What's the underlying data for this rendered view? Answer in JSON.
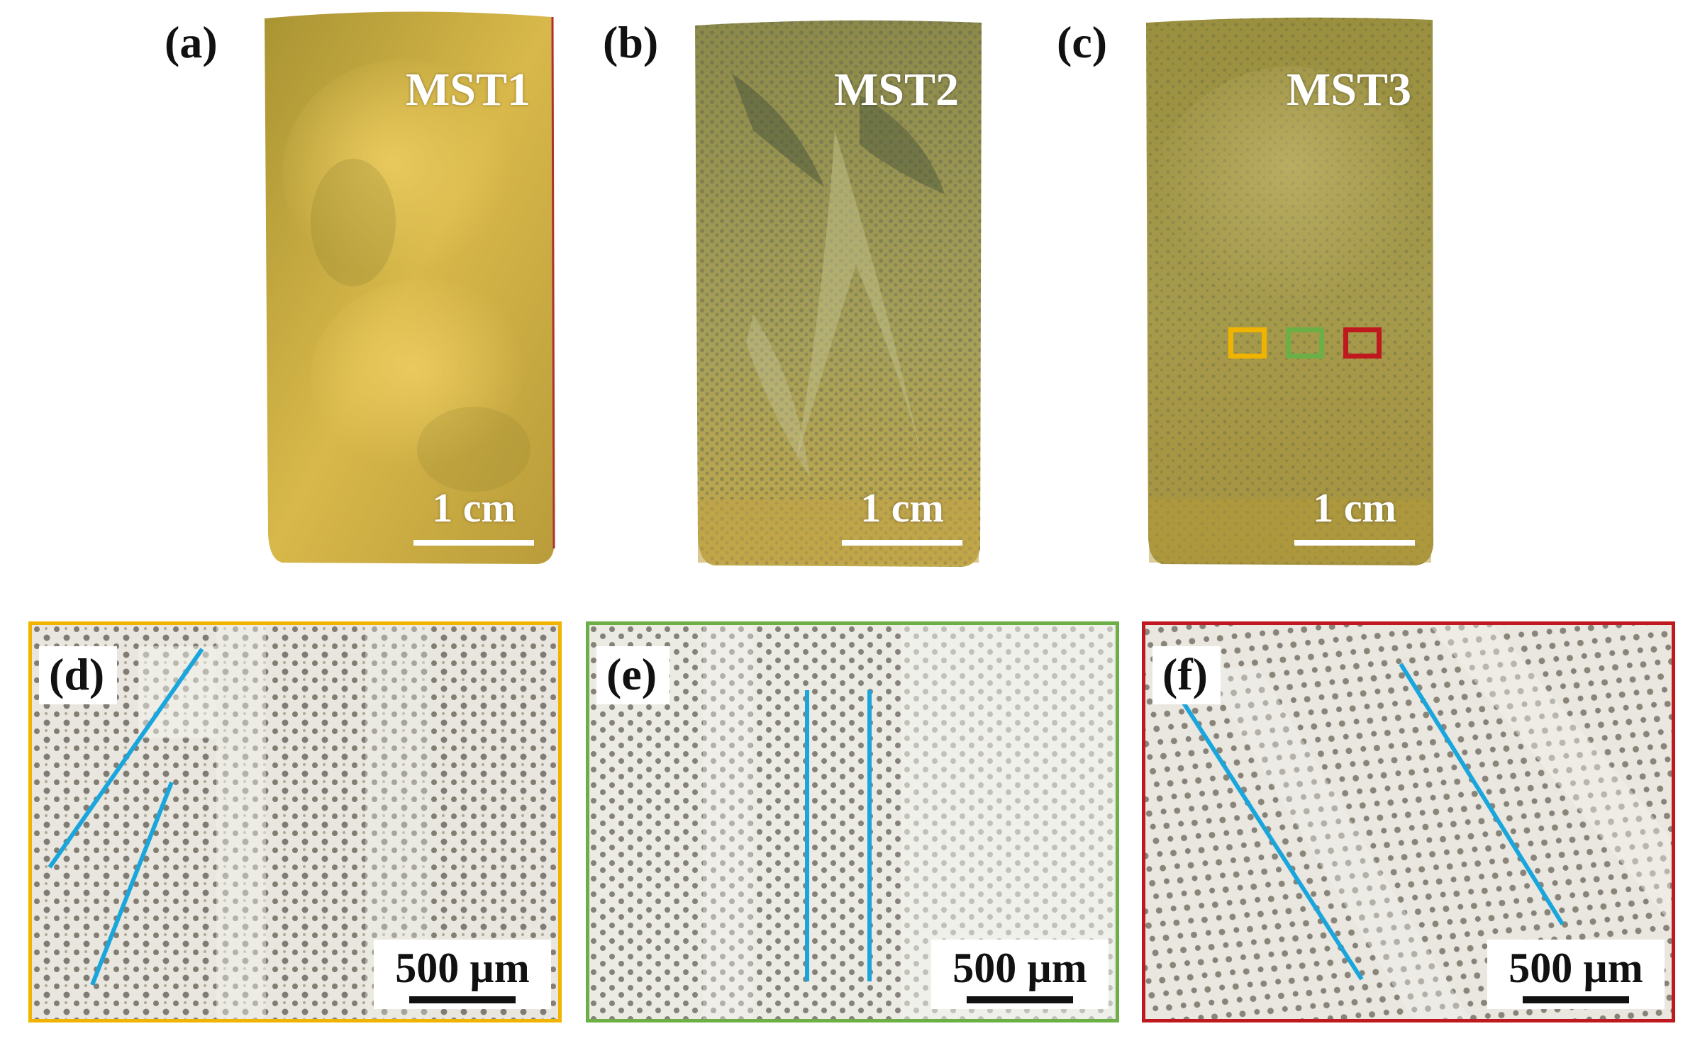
{
  "colors": {
    "roi_yellow": "#f0b400",
    "roi_green": "#6caf46",
    "roi_red": "#c0181f",
    "growth_line": "#1aa6dc",
    "sample_gold": "#c9ac4a"
  },
  "samples": [
    {
      "label": "(a)",
      "name": "MST1",
      "scale": "1 cm"
    },
    {
      "label": "(b)",
      "name": "MST2",
      "scale": "1 cm"
    },
    {
      "label": "(c)",
      "name": "MST3",
      "scale": "1 cm"
    }
  ],
  "micrographs": [
    {
      "label": "(d)",
      "scale": "500 µm",
      "frame_color": "#f0b400"
    },
    {
      "label": "(e)",
      "scale": "500 µm",
      "frame_color": "#6caf46"
    },
    {
      "label": "(f)",
      "scale": "500 µm",
      "frame_color": "#c0181f"
    }
  ]
}
